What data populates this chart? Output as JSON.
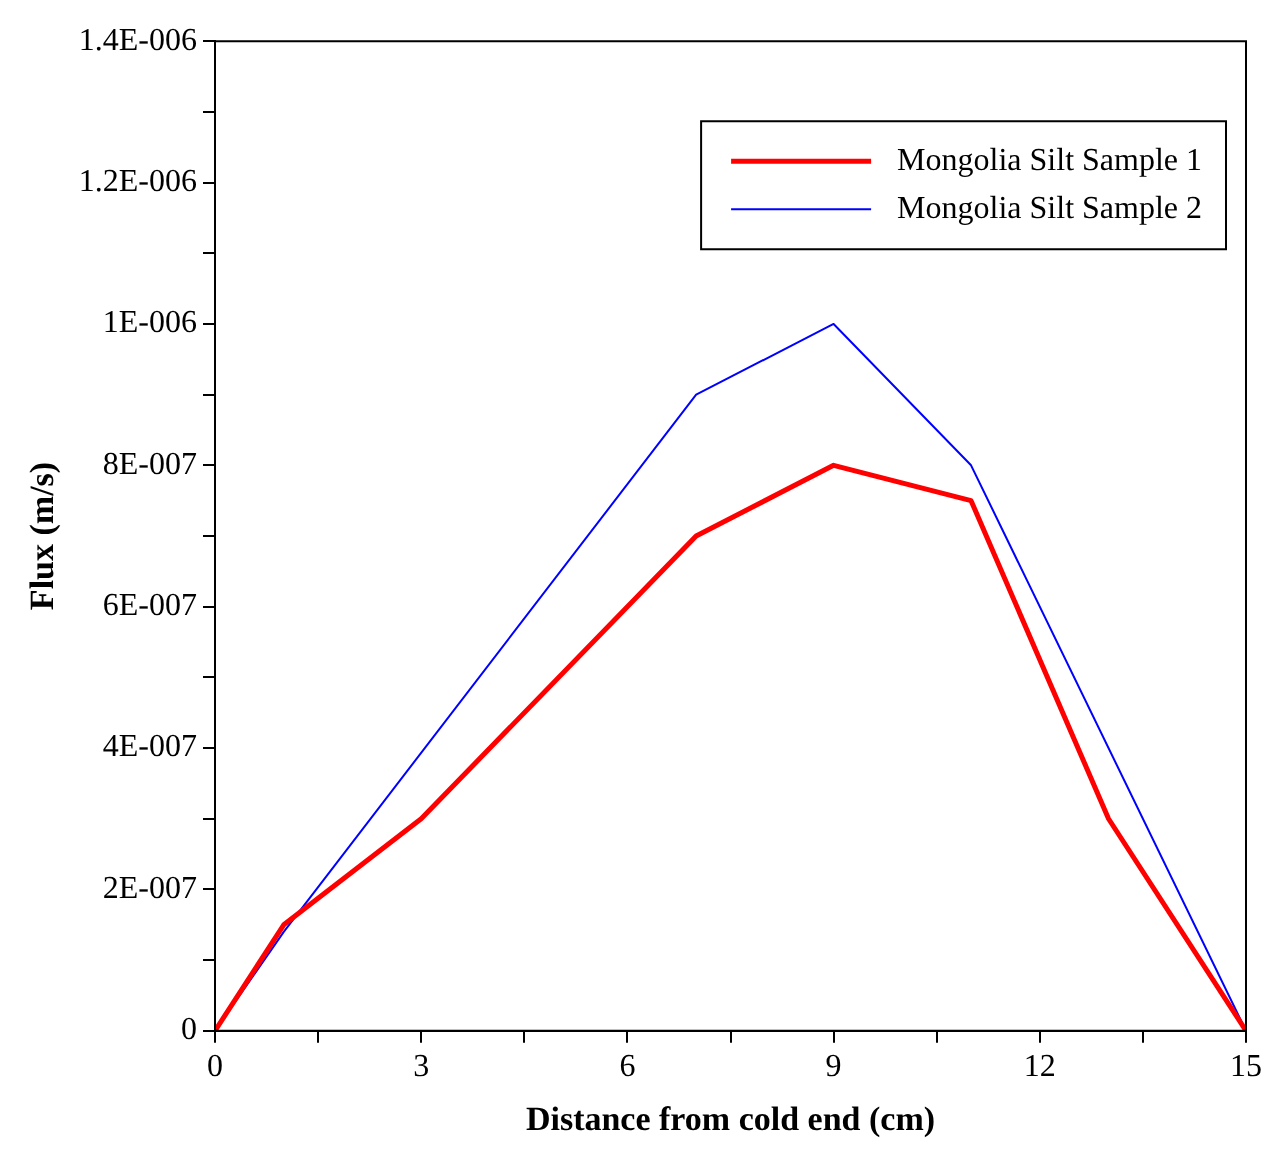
{
  "chart_data": {
    "type": "line",
    "xlabel": "Distance from cold end (cm)",
    "ylabel": "Flux (m/s)",
    "xlim": [
      0,
      15
    ],
    "xticks": [
      0,
      {
        "value": 1.5,
        "label": null
      },
      3,
      {
        "value": 4.5,
        "label": null
      },
      6,
      {
        "value": 7.5,
        "label": null
      },
      9,
      {
        "value": 10.5,
        "label": null
      },
      12,
      {
        "value": 13.5,
        "label": null
      },
      15
    ],
    "ylim": [
      0,
      1.4e-06
    ],
    "yticks": [
      0,
      {
        "value": 1e-07,
        "label": null
      },
      {
        "value": 2e-07,
        "label": "2E-007"
      },
      {
        "value": 3e-07,
        "label": null
      },
      {
        "value": 4e-07,
        "label": "4E-007"
      },
      {
        "value": 5e-07,
        "label": null
      },
      {
        "value": 6e-07,
        "label": "6E-007"
      },
      {
        "value": 7e-07,
        "label": null
      },
      {
        "value": 8e-07,
        "label": "8E-007"
      },
      {
        "value": 9e-07,
        "label": null
      },
      {
        "value": 1e-06,
        "label": "1E-006"
      },
      {
        "value": 1.1e-06,
        "label": null
      },
      {
        "value": 1.2e-06,
        "label": "1.2E-006"
      },
      {
        "value": 1.3e-06,
        "label": null
      },
      {
        "value": 1.4e-06,
        "label": "1.4E-006"
      }
    ],
    "grid": false,
    "legend": "top right",
    "marker": "none",
    "line_style": "solid",
    "series": [
      {
        "name": "Mongolia Silt Sample 1",
        "color": "#ff0000",
        "x": [
          0,
          1,
          3,
          7,
          9,
          11,
          13,
          15
        ],
        "values": [
          0,
          1.5e-07,
          3e-07,
          7e-07,
          8e-07,
          7.5e-07,
          3e-07,
          0
        ]
      },
      {
        "name": "Mongolia Silt Sample 2",
        "color": "#0000ff",
        "x": [
          0,
          1,
          7,
          9,
          11,
          15
        ],
        "values": [
          0,
          1.4e-07,
          9e-07,
          1e-06,
          8e-07,
          0
        ]
      }
    ]
  }
}
